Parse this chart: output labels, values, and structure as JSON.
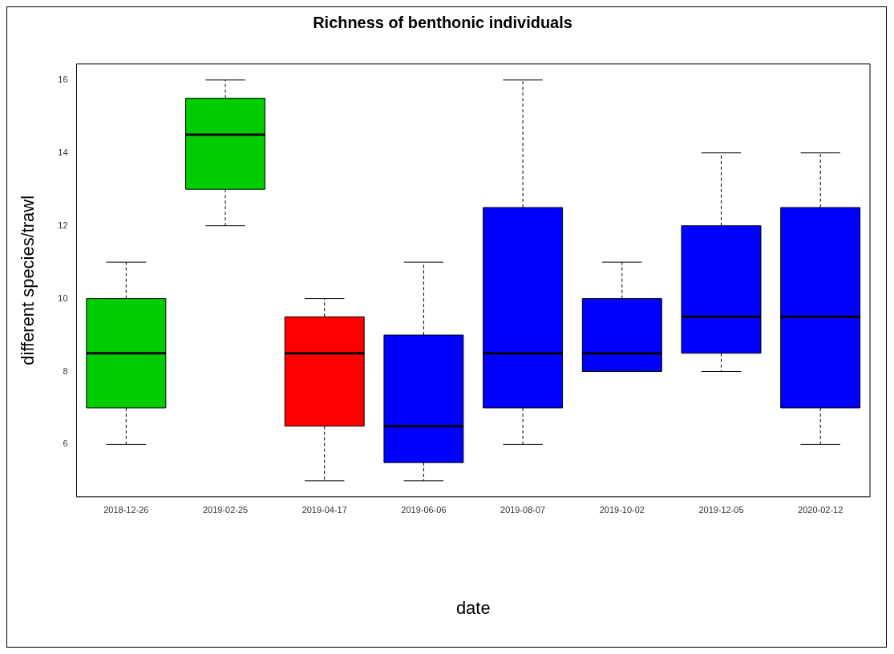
{
  "chart_data": {
    "type": "box",
    "title": "Richness of benthonic individuals",
    "xlabel": "date",
    "ylabel": "different species/trawl",
    "categories": [
      "2018-12-26",
      "2019-02-25",
      "2019-04-17",
      "2019-06-06",
      "2019-08-07",
      "2019-10-02",
      "2019-12-05",
      "2020-02-12"
    ],
    "colors": [
      "#00cc00",
      "#00cc00",
      "#ff0000",
      "#0000ff",
      "#0000ff",
      "#0000ff",
      "#0000ff",
      "#0000ff"
    ],
    "boxes": [
      {
        "low": 6,
        "q1": 7,
        "median": 8.5,
        "q3": 10,
        "high": 11
      },
      {
        "low": 12,
        "q1": 13,
        "median": 14.5,
        "q3": 15.5,
        "high": 16
      },
      {
        "low": 5,
        "q1": 6.5,
        "median": 8.5,
        "q3": 9.5,
        "high": 10
      },
      {
        "low": 5,
        "q1": 5.5,
        "median": 6.5,
        "q3": 9,
        "high": 11
      },
      {
        "low": 6,
        "q1": 7,
        "median": 8.5,
        "q3": 12.5,
        "high": 16
      },
      {
        "low": 8,
        "q1": 8,
        "median": 8.5,
        "q3": 10,
        "high": 11
      },
      {
        "low": 8,
        "q1": 8.5,
        "median": 9.5,
        "q3": 12,
        "high": 14
      },
      {
        "low": 6,
        "q1": 7,
        "median": 9.5,
        "q3": 12.5,
        "high": 14
      }
    ],
    "ylim": [
      4.56,
      16.44
    ],
    "yticks": [
      6,
      8,
      10,
      12,
      14,
      16
    ]
  }
}
